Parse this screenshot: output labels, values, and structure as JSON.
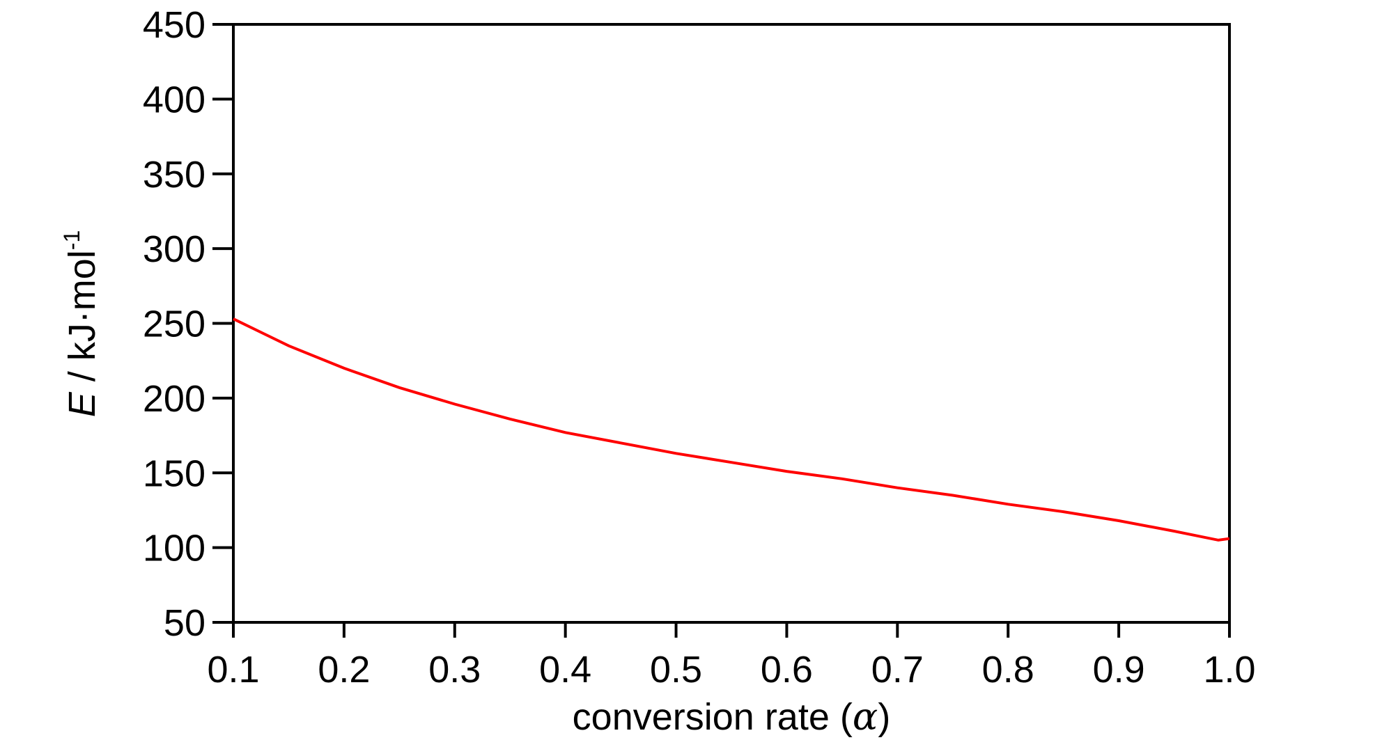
{
  "chart_data": {
    "type": "line",
    "title": "",
    "xlabel": {
      "prefix": "conversion rate (",
      "symbol": "α",
      "suffix": ")"
    },
    "ylabel": {
      "symbol": "E",
      "text": " / kJ·mol",
      "superscript": "-1"
    },
    "xlim": [
      0.1,
      1.0
    ],
    "ylim": [
      50,
      450
    ],
    "x_ticks": [
      "0.1",
      "0.2",
      "0.3",
      "0.4",
      "0.5",
      "0.6",
      "0.7",
      "0.8",
      "0.9",
      "1.0"
    ],
    "y_ticks": [
      "50",
      "100",
      "150",
      "200",
      "250",
      "300",
      "350",
      "400",
      "450"
    ],
    "grid": false,
    "legend": "none",
    "series": [
      {
        "color": "#ff0000",
        "x": [
          0.1,
          0.15,
          0.2,
          0.25,
          0.3,
          0.35,
          0.4,
          0.45,
          0.5,
          0.55,
          0.6,
          0.65,
          0.7,
          0.75,
          0.8,
          0.85,
          0.9,
          0.95,
          0.99,
          1.0
        ],
        "y": [
          253,
          235,
          220,
          207,
          196,
          186,
          177,
          170,
          163,
          157,
          151,
          146,
          140,
          135,
          129,
          124,
          118,
          111,
          105,
          106
        ]
      }
    ]
  }
}
